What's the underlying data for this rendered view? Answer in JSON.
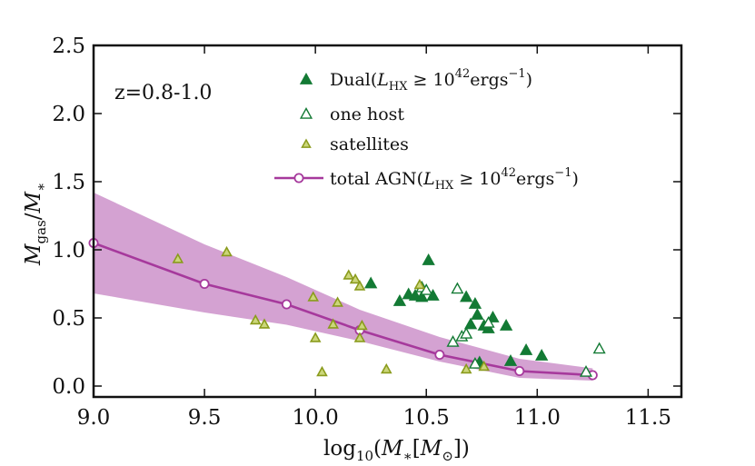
{
  "chart_data": {
    "type": "scatter",
    "title": "",
    "annotation": "z=0.8-1.0",
    "xlabel": "log10(M*[M⊙])",
    "ylabel": "Mgas/M*",
    "xlim": [
      9.0,
      11.65
    ],
    "ylim": [
      -0.08,
      2.5
    ],
    "xticks": [
      "9.0",
      "9.5",
      "10.0",
      "10.5",
      "11.0",
      "11.5"
    ],
    "xtick_values": [
      9.0,
      9.5,
      10.0,
      10.5,
      11.0,
      11.5
    ],
    "yticks": [
      "0.0",
      "0.5",
      "1.0",
      "1.5",
      "2.0",
      "2.5"
    ],
    "ytick_values": [
      0.0,
      0.5,
      1.0,
      1.5,
      2.0,
      2.5
    ],
    "colors": {
      "dual": "#137a34",
      "satellite_edge": "#8a9b1c",
      "satellite_fill": "#cbd67a",
      "total": "#a6399c",
      "band": "#cf98cd"
    },
    "legend": [
      {
        "key": "dual",
        "label": "Dual(L_HX ≥ 10^42 ergs^-1)"
      },
      {
        "key": "onehost",
        "label": "one host"
      },
      {
        "key": "satellites",
        "label": "satellites"
      },
      {
        "key": "total",
        "label": "total AGN(L_HX ≥ 10^42 ergs^-1)"
      }
    ],
    "series": [
      {
        "name": "Dual",
        "marker": "filled-triangle",
        "points": [
          [
            10.25,
            0.75
          ],
          [
            10.38,
            0.62
          ],
          [
            10.42,
            0.67
          ],
          [
            10.45,
            0.66
          ],
          [
            10.48,
            0.65
          ],
          [
            10.51,
            0.92
          ],
          [
            10.53,
            0.66
          ],
          [
            10.68,
            0.65
          ],
          [
            10.7,
            0.45
          ],
          [
            10.72,
            0.6
          ],
          [
            10.73,
            0.52
          ],
          [
            10.76,
            0.44
          ],
          [
            10.78,
            0.42
          ],
          [
            10.8,
            0.5
          ],
          [
            10.86,
            0.44
          ],
          [
            10.88,
            0.18
          ],
          [
            10.95,
            0.26
          ],
          [
            11.02,
            0.22
          ],
          [
            10.74,
            0.17
          ]
        ]
      },
      {
        "name": "one host",
        "marker": "open-triangle",
        "points": [
          [
            10.48,
            0.72
          ],
          [
            10.5,
            0.7
          ],
          [
            10.64,
            0.71
          ],
          [
            10.62,
            0.32
          ],
          [
            10.66,
            0.36
          ],
          [
            10.68,
            0.38
          ],
          [
            10.78,
            0.46
          ],
          [
            11.22,
            0.1
          ],
          [
            11.28,
            0.27
          ],
          [
            10.72,
            0.16
          ]
        ]
      },
      {
        "name": "satellites",
        "marker": "small-triangle",
        "points": [
          [
            9.38,
            0.93
          ],
          [
            9.6,
            0.98
          ],
          [
            9.73,
            0.48
          ],
          [
            9.77,
            0.45
          ],
          [
            9.99,
            0.65
          ],
          [
            10.0,
            0.35
          ],
          [
            10.03,
            0.1
          ],
          [
            10.08,
            0.45
          ],
          [
            10.1,
            0.61
          ],
          [
            10.15,
            0.81
          ],
          [
            10.18,
            0.78
          ],
          [
            10.2,
            0.73
          ],
          [
            10.2,
            0.35
          ],
          [
            10.21,
            0.44
          ],
          [
            10.32,
            0.12
          ],
          [
            10.47,
            0.74
          ],
          [
            10.68,
            0.12
          ],
          [
            10.76,
            0.14
          ]
        ]
      }
    ],
    "total": {
      "name": "total AGN",
      "x": [
        9.0,
        9.5,
        9.87,
        10.2,
        10.56,
        10.92,
        11.25
      ],
      "y": [
        1.05,
        0.75,
        0.6,
        0.41,
        0.23,
        0.11,
        0.08
      ],
      "upper": [
        1.42,
        1.04,
        0.8,
        0.56,
        0.36,
        0.2,
        0.13
      ],
      "lower": [
        0.68,
        0.54,
        0.45,
        0.33,
        0.18,
        0.06,
        0.04
      ]
    }
  }
}
